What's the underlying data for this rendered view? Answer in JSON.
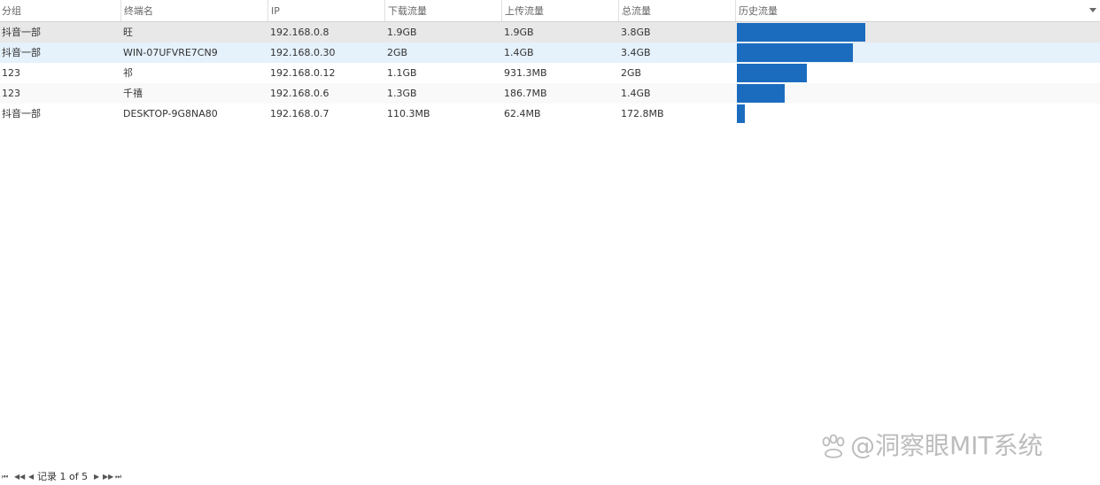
{
  "table": {
    "columns": [
      {
        "key": "group",
        "label": "分组"
      },
      {
        "key": "terminal",
        "label": "终端名"
      },
      {
        "key": "ip",
        "label": "IP"
      },
      {
        "key": "download",
        "label": "下载流量"
      },
      {
        "key": "upload",
        "label": "上传流量"
      },
      {
        "key": "total",
        "label": "总流量"
      },
      {
        "key": "history",
        "label": "历史流量"
      }
    ],
    "rows": [
      {
        "group": "抖音一部",
        "terminal": "旺",
        "ip": "192.168.0.8",
        "download": "1.9GB",
        "upload": "1.9GB",
        "total": "3.8GB",
        "history_fraction": 0.99
      },
      {
        "group": "抖音一部",
        "terminal": "WIN-07UFVRE7CN9",
        "ip": "192.168.0.30",
        "download": "2GB",
        "upload": "1.4GB",
        "total": "3.4GB",
        "history_fraction": 0.9
      },
      {
        "group": "123",
        "terminal": "祁",
        "ip": "192.168.0.12",
        "download": "1.1GB",
        "upload": "931.3MB",
        "total": "2GB",
        "history_fraction": 0.54
      },
      {
        "group": "123",
        "terminal": "千禧",
        "ip": "192.168.0.6",
        "download": "1.3GB",
        "upload": "186.7MB",
        "total": "1.4GB",
        "history_fraction": 0.37
      },
      {
        "group": "抖音一部",
        "terminal": "DESKTOP-9G8NA80",
        "ip": "192.168.0.7",
        "download": "110.3MB",
        "upload": "62.4MB",
        "total": "172.8MB",
        "history_fraction": 0.06
      }
    ],
    "bar_color": "#1b6cbf"
  },
  "pager": {
    "text": "记录 1 of 5"
  },
  "watermark": {
    "text": "@洞察眼MIT系统"
  }
}
